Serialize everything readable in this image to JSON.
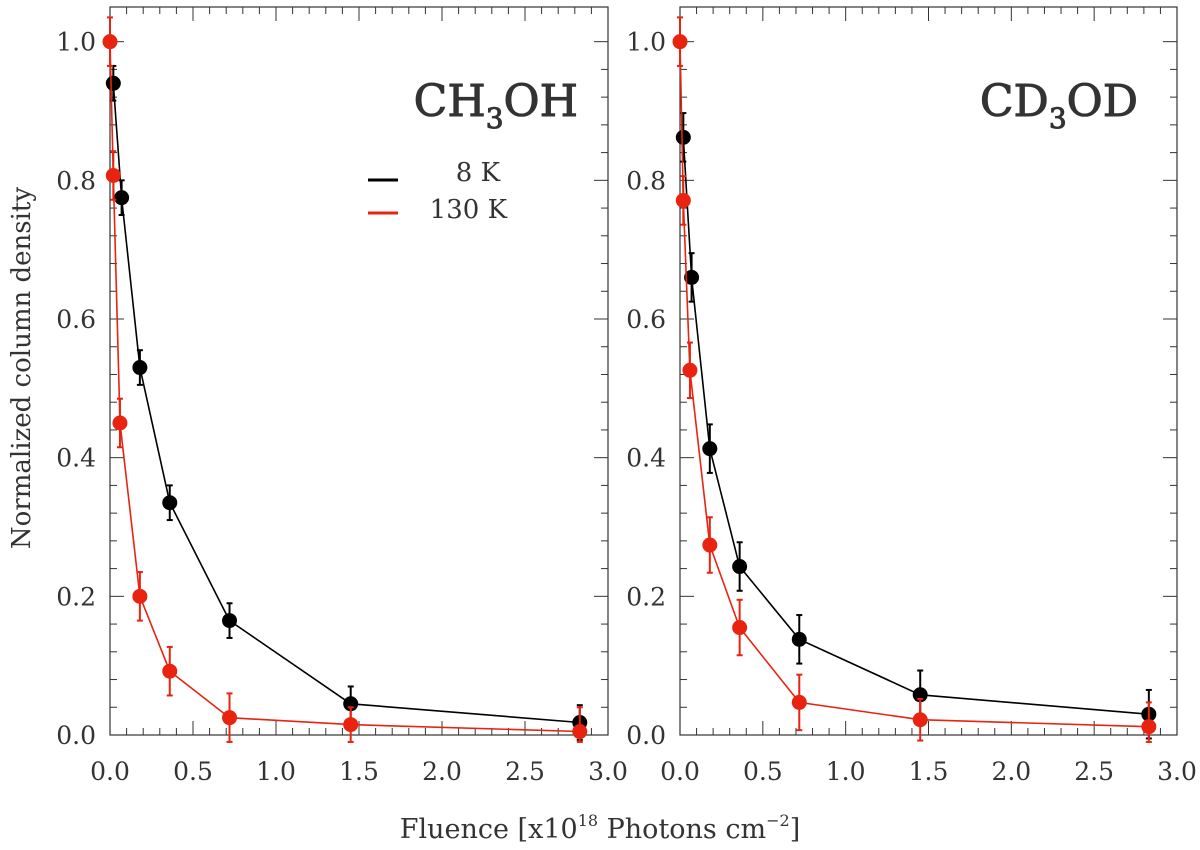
{
  "figure": {
    "ylabel": "Normalized column density",
    "xlabel_prefix": "Fluence [x10",
    "xlabel_exp": "18",
    "xlabel_mid": " Photons cm",
    "xlabel_exp2": "−2",
    "xlabel_suffix": "]"
  },
  "colors": {
    "8K": "#000000",
    "130K": "#e8230f",
    "axis": "#333333"
  },
  "chart_data": [
    {
      "type": "line",
      "title_main": "CH",
      "title_sub": "3",
      "title_tail": "OH",
      "xlim": [
        0,
        3.0
      ],
      "ylim": [
        0,
        1.05
      ],
      "xticks": [
        "0.0",
        "0.5",
        "1.0",
        "1.5",
        "2.0",
        "2.5",
        "3.0"
      ],
      "yticks": [
        "0.0",
        "0.2",
        "0.4",
        "0.6",
        "0.8",
        "1.0"
      ],
      "legend": [
        "8 K",
        "130 K"
      ],
      "series": [
        {
          "name": "8 K",
          "x": [
            0.02,
            0.07,
            0.18,
            0.36,
            0.72,
            1.45,
            2.83
          ],
          "y": [
            0.94,
            0.775,
            0.53,
            0.335,
            0.165,
            0.045,
            0.018
          ],
          "err": [
            0.025,
            0.025,
            0.025,
            0.025,
            0.025,
            0.025,
            0.025
          ]
        },
        {
          "name": "130 K",
          "x": [
            0.0,
            0.02,
            0.06,
            0.18,
            0.36,
            0.72,
            1.45,
            2.83
          ],
          "y": [
            1.0,
            0.807,
            0.45,
            0.2,
            0.092,
            0.025,
            0.015,
            0.005
          ],
          "err": [
            0.035,
            0.035,
            0.035,
            0.035,
            0.035,
            0.035,
            0.025,
            0.035
          ]
        }
      ]
    },
    {
      "type": "line",
      "title_main": "CD",
      "title_sub": "3",
      "title_tail": "OD",
      "xlim": [
        0,
        3.0
      ],
      "ylim": [
        0,
        1.05
      ],
      "xticks": [
        "0.0",
        "0.5",
        "1.0",
        "1.5",
        "2.0",
        "2.5",
        "3.0"
      ],
      "yticks": [
        "0.0",
        "0.2",
        "0.4",
        "0.6",
        "0.8",
        "1.0"
      ],
      "series": [
        {
          "name": "8 K",
          "x": [
            0.02,
            0.07,
            0.18,
            0.36,
            0.72,
            1.45,
            2.83
          ],
          "y": [
            0.862,
            0.66,
            0.413,
            0.243,
            0.138,
            0.058,
            0.03
          ],
          "err": [
            0.035,
            0.035,
            0.035,
            0.035,
            0.035,
            0.035,
            0.035
          ]
        },
        {
          "name": "130 K",
          "x": [
            0.0,
            0.02,
            0.06,
            0.18,
            0.36,
            0.72,
            1.45,
            2.83
          ],
          "y": [
            1.0,
            0.771,
            0.526,
            0.274,
            0.155,
            0.047,
            0.022,
            0.012
          ],
          "err": [
            0.035,
            0.035,
            0.04,
            0.04,
            0.04,
            0.04,
            0.03,
            0.035
          ]
        }
      ]
    }
  ]
}
